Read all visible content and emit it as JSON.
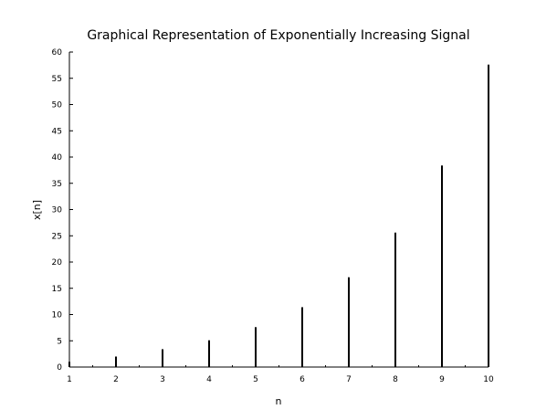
{
  "chart_data": {
    "type": "bar",
    "title": "Graphical Representation of Exponentially Increasing Signal",
    "xlabel": "n",
    "ylabel": "x[n]",
    "x": [
      1,
      2,
      3,
      4,
      5,
      6,
      7,
      8,
      9,
      10
    ],
    "values": [
      1.0,
      2.0,
      3.4,
      5.1,
      7.6,
      11.4,
      17.1,
      25.6,
      38.4,
      57.6
    ],
    "xlim": [
      1,
      10
    ],
    "ylim": [
      0,
      60
    ],
    "xticks": [
      "1",
      "2",
      "3",
      "4",
      "5",
      "6",
      "7",
      "8",
      "9",
      "10"
    ],
    "yticks": [
      "0",
      "5",
      "10",
      "15",
      "20",
      "25",
      "30",
      "35",
      "40",
      "45",
      "50",
      "55",
      "60"
    ],
    "grid": false,
    "colors": {
      "stem": "#000000",
      "axis": "#000000"
    }
  }
}
